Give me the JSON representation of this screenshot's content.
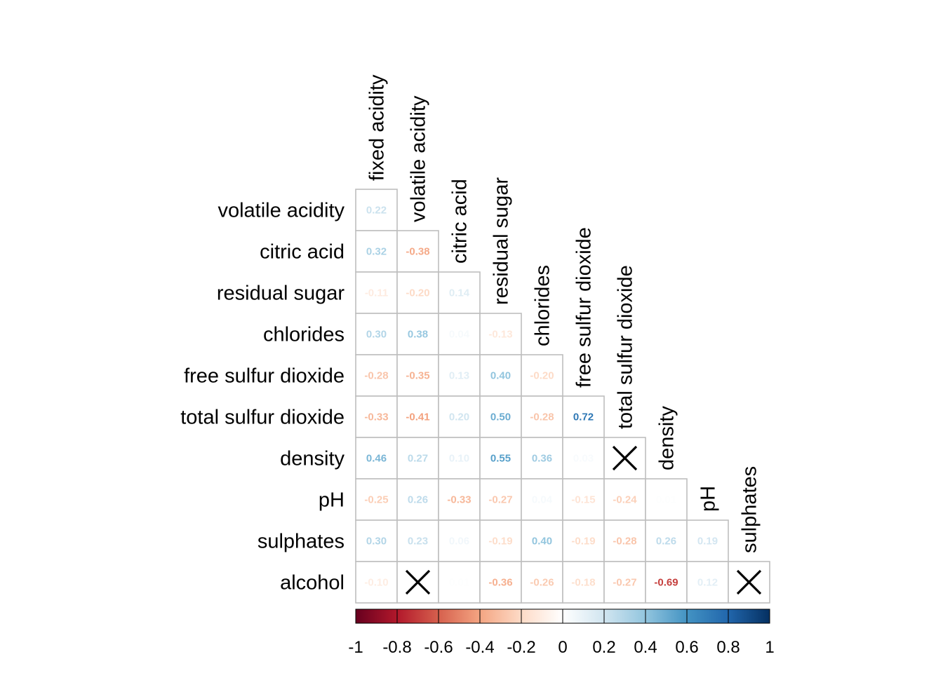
{
  "chart_data": {
    "type": "heatmap",
    "variables": [
      "fixed acidity",
      "volatile acidity",
      "citric acid",
      "residual sugar",
      "chlorides",
      "free sulfur dioxide",
      "total sulfur dioxide",
      "density",
      "pH",
      "sulphates",
      "alcohol"
    ],
    "row_labels": [
      "volatile acidity",
      "citric acid",
      "residual sugar",
      "chlorides",
      "free sulfur dioxide",
      "total sulfur dioxide",
      "density",
      "pH",
      "sulphates",
      "alcohol"
    ],
    "col_labels": [
      "fixed acidity",
      "volatile acidity",
      "citric acid",
      "residual sugar",
      "chlorides",
      "free sulfur dioxide",
      "total sulfur dioxide",
      "density",
      "pH",
      "sulphates"
    ],
    "matrix": [
      [
        0.22
      ],
      [
        0.32,
        -0.38
      ],
      [
        -0.11,
        -0.2,
        0.14
      ],
      [
        0.3,
        0.38,
        0.04,
        -0.13
      ],
      [
        -0.28,
        -0.35,
        0.13,
        0.4,
        -0.2
      ],
      [
        -0.33,
        -0.41,
        0.2,
        0.5,
        -0.28,
        0.72
      ],
      [
        0.46,
        0.27,
        0.1,
        0.55,
        0.36,
        0.03,
        null
      ],
      [
        -0.25,
        0.26,
        -0.33,
        -0.27,
        0.04,
        -0.15,
        -0.24,
        0.01
      ],
      [
        0.3,
        0.23,
        0.06,
        -0.19,
        0.4,
        -0.19,
        -0.28,
        0.26,
        0.19
      ],
      [
        -0.1,
        null,
        0.01,
        -0.36,
        -0.26,
        -0.18,
        -0.27,
        -0.69,
        0.12,
        null
      ]
    ],
    "crossed_cells": [
      {
        "row": "density",
        "col": "total sulfur dioxide"
      },
      {
        "row": "alcohol",
        "col": "volatile acidity"
      },
      {
        "row": "alcohol",
        "col": "sulphates"
      }
    ],
    "colorbar": {
      "ticks": [
        "-1",
        "-0.8",
        "-0.6",
        "-0.4",
        "-0.2",
        "0",
        "0.2",
        "0.4",
        "0.6",
        "0.8",
        "1"
      ],
      "range": [
        -1,
        1
      ],
      "palette": [
        "#67001F",
        "#B2182B",
        "#D6604D",
        "#F4A582",
        "#FDDBC7",
        "#FFFFFF",
        "#D1E5F0",
        "#92C5DE",
        "#4393C3",
        "#2166AC",
        "#053061"
      ]
    },
    "grid_color": "#BEBEBE"
  }
}
